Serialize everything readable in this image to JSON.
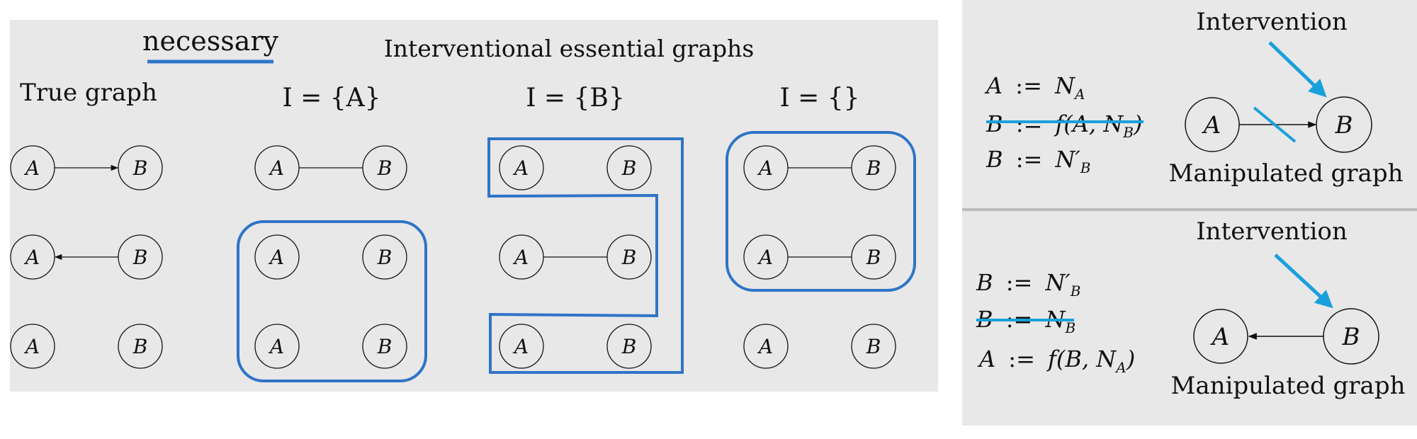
{
  "main_panel": {
    "badge": "necessary",
    "title": "Interventional essential graphs",
    "columns": [
      {
        "key": "true",
        "label": "True graph"
      },
      {
        "key": "ia",
        "label": "I = {A}"
      },
      {
        "key": "ib",
        "label": "I = {B}"
      },
      {
        "key": "inone",
        "label": "I = {}"
      }
    ],
    "node_labels": {
      "a": "A",
      "b": "B"
    },
    "rows": {
      "true": [
        "a-to-b",
        "b-to-a",
        "none"
      ],
      "ia": [
        "undirected",
        "none",
        "none"
      ],
      "ib": [
        "none",
        "undirected",
        "none"
      ],
      "inone": [
        "undirected",
        "undirected",
        "none"
      ]
    }
  },
  "right_top": {
    "equations": [
      {
        "lhs": "A",
        "op": ":=",
        "rhs_main": "N",
        "rhs_sub": "A",
        "struck": false
      },
      {
        "lhs": "B",
        "op": ":=",
        "rhs_main": "f(A, N",
        "rhs_sub": "B",
        "rhs_tail": ")",
        "struck": true
      },
      {
        "lhs": "B",
        "op": ":=",
        "rhs_main": "N′",
        "rhs_sub": "B",
        "struck": false
      }
    ],
    "intervention_label": "Intervention",
    "caption": "Manipulated graph",
    "node_a": "A",
    "node_b": "B"
  },
  "right_bottom": {
    "equations": [
      {
        "lhs": "B",
        "op": ":=",
        "rhs_main": "N′",
        "rhs_sub": "B",
        "struck": false
      },
      {
        "lhs": "B",
        "op": ":=",
        "rhs_main": "N",
        "rhs_sub": "B",
        "struck": true
      },
      {
        "lhs": "A",
        "op": ":=",
        "rhs_main": "f(B, N",
        "rhs_sub": "A",
        "rhs_tail": ")",
        "struck": false
      }
    ],
    "intervention_label": "Intervention",
    "caption": "Manipulated graph",
    "node_a": "A",
    "node_b": "B"
  },
  "colors": {
    "panel": "#e8e8e8",
    "highlight": "#2f74c8",
    "intervention_arrow": "#19a0dc",
    "ink": "#111111"
  }
}
